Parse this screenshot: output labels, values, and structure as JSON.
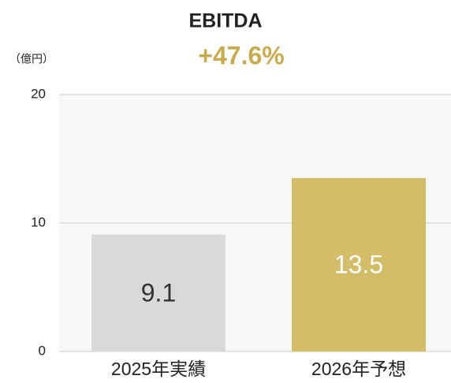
{
  "chart_data": {
    "type": "bar",
    "title": "EBITDA",
    "subtitle": "+47.6%",
    "y_unit": "（億円）",
    "categories": [
      "2025年実績",
      "2026年予想"
    ],
    "values": [
      9.1,
      13.5
    ],
    "colors": [
      "#d9d9d9",
      "#d4bd68"
    ],
    "value_label_colors": [
      "#333333",
      "#ffffff"
    ],
    "ylim": [
      0,
      20
    ],
    "yticks": [
      0,
      10,
      20
    ],
    "grid": true
  }
}
